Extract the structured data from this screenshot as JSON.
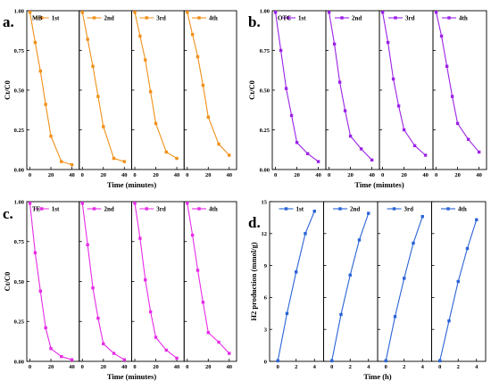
{
  "colors": {
    "orange": "#f0901a",
    "purple": "#9b22e6",
    "magenta": "#e62ce6",
    "blue": "#2a63d6"
  },
  "chart_data": [
    {
      "id": "a",
      "panel_label": "a.",
      "type": "line",
      "sample": "MB",
      "color": "orange",
      "xlabel": "Time (minutes)",
      "ylabel": "Ct/C0",
      "ylim": [
        0,
        1.0
      ],
      "yticks": [
        "0.00",
        "0.25",
        "0.50",
        "0.75",
        "1.00"
      ],
      "xticks": [
        "0",
        "20",
        "40"
      ],
      "legend_placement": "top-right",
      "series": [
        {
          "name": "1st",
          "x": [
            0,
            5,
            10,
            15,
            20,
            30,
            40
          ],
          "y": [
            0.99,
            0.8,
            0.62,
            0.41,
            0.21,
            0.05,
            0.03
          ]
        },
        {
          "name": "2nd",
          "x": [
            0,
            5,
            10,
            15,
            20,
            30,
            40
          ],
          "y": [
            0.99,
            0.82,
            0.65,
            0.46,
            0.27,
            0.07,
            0.05
          ]
        },
        {
          "name": "3rd",
          "x": [
            0,
            5,
            10,
            15,
            20,
            30,
            40
          ],
          "y": [
            0.99,
            0.84,
            0.69,
            0.49,
            0.29,
            0.11,
            0.07
          ]
        },
        {
          "name": "4th",
          "x": [
            0,
            5,
            10,
            15,
            20,
            30,
            40
          ],
          "y": [
            0.99,
            0.85,
            0.71,
            0.53,
            0.33,
            0.16,
            0.09
          ]
        }
      ]
    },
    {
      "id": "b",
      "panel_label": "b.",
      "type": "line",
      "sample": "OTC",
      "color": "purple",
      "xlabel": "Time (minutes)",
      "ylabel": "Ct/C0",
      "ylim": [
        0,
        1.0
      ],
      "yticks": [
        "0.00",
        "0.25",
        "0.50",
        "0.75",
        "1.00"
      ],
      "xticks": [
        "0",
        "20",
        "40"
      ],
      "legend_placement": "top-right",
      "series": [
        {
          "name": "1st",
          "x": [
            0,
            5,
            10,
            15,
            20,
            30,
            40
          ],
          "y": [
            0.99,
            0.75,
            0.51,
            0.34,
            0.17,
            0.1,
            0.05
          ]
        },
        {
          "name": "2nd",
          "x": [
            0,
            5,
            10,
            15,
            20,
            30,
            40
          ],
          "y": [
            0.99,
            0.79,
            0.55,
            0.37,
            0.21,
            0.13,
            0.06
          ]
        },
        {
          "name": "3rd",
          "x": [
            0,
            5,
            10,
            15,
            20,
            30,
            40
          ],
          "y": [
            0.99,
            0.8,
            0.57,
            0.4,
            0.25,
            0.15,
            0.09
          ]
        },
        {
          "name": "4th",
          "x": [
            0,
            5,
            10,
            15,
            20,
            30,
            40
          ],
          "y": [
            0.99,
            0.84,
            0.65,
            0.46,
            0.29,
            0.19,
            0.11
          ]
        }
      ]
    },
    {
      "id": "c",
      "panel_label": "c.",
      "type": "line",
      "sample": "TE",
      "color": "magenta",
      "xlabel": "Time (minutes)",
      "ylabel": "Ct/C0",
      "ylim": [
        0,
        1.0
      ],
      "yticks": [
        "0.00",
        "0.25",
        "0.50",
        "0.75",
        "1.00"
      ],
      "xticks": [
        "0",
        "20",
        "40"
      ],
      "legend_placement": "top-right",
      "series": [
        {
          "name": "1st",
          "x": [
            0,
            5,
            10,
            15,
            20,
            30,
            40
          ],
          "y": [
            0.99,
            0.68,
            0.44,
            0.21,
            0.08,
            0.03,
            0.01
          ]
        },
        {
          "name": "2nd",
          "x": [
            0,
            5,
            10,
            15,
            20,
            30,
            40
          ],
          "y": [
            0.99,
            0.73,
            0.46,
            0.27,
            0.11,
            0.05,
            0.01
          ]
        },
        {
          "name": "3rd",
          "x": [
            0,
            5,
            10,
            15,
            20,
            30,
            40
          ],
          "y": [
            0.99,
            0.77,
            0.51,
            0.31,
            0.15,
            0.07,
            0.02
          ]
        },
        {
          "name": "4th",
          "x": [
            0,
            5,
            10,
            15,
            20,
            30,
            40
          ],
          "y": [
            0.99,
            0.79,
            0.57,
            0.37,
            0.18,
            0.12,
            0.05
          ]
        }
      ]
    },
    {
      "id": "d",
      "panel_label": "d.",
      "type": "line",
      "sample": "",
      "color": "blue",
      "xlabel": "Time (h)",
      "ylabel": "H2 production (mmol/g)",
      "ylim": [
        0,
        15
      ],
      "yticks": [
        "0",
        "3",
        "6",
        "9",
        "12",
        "15"
      ],
      "xticks": [
        "0",
        "2",
        "4"
      ],
      "legend_placement": "top-right",
      "series": [
        {
          "name": "1st",
          "x": [
            0,
            1,
            2,
            3,
            4
          ],
          "y": [
            0.05,
            4.5,
            8.4,
            12.0,
            14.1
          ]
        },
        {
          "name": "2nd",
          "x": [
            0,
            1,
            2,
            3,
            4
          ],
          "y": [
            0.05,
            4.4,
            8.1,
            11.4,
            13.9
          ]
        },
        {
          "name": "3rd",
          "x": [
            0,
            1,
            2,
            3,
            4
          ],
          "y": [
            0.05,
            4.2,
            7.8,
            11.1,
            13.6
          ]
        },
        {
          "name": "4th",
          "x": [
            0,
            1,
            2,
            3,
            4
          ],
          "y": [
            0.05,
            3.8,
            7.5,
            10.6,
            13.3
          ]
        }
      ]
    }
  ]
}
